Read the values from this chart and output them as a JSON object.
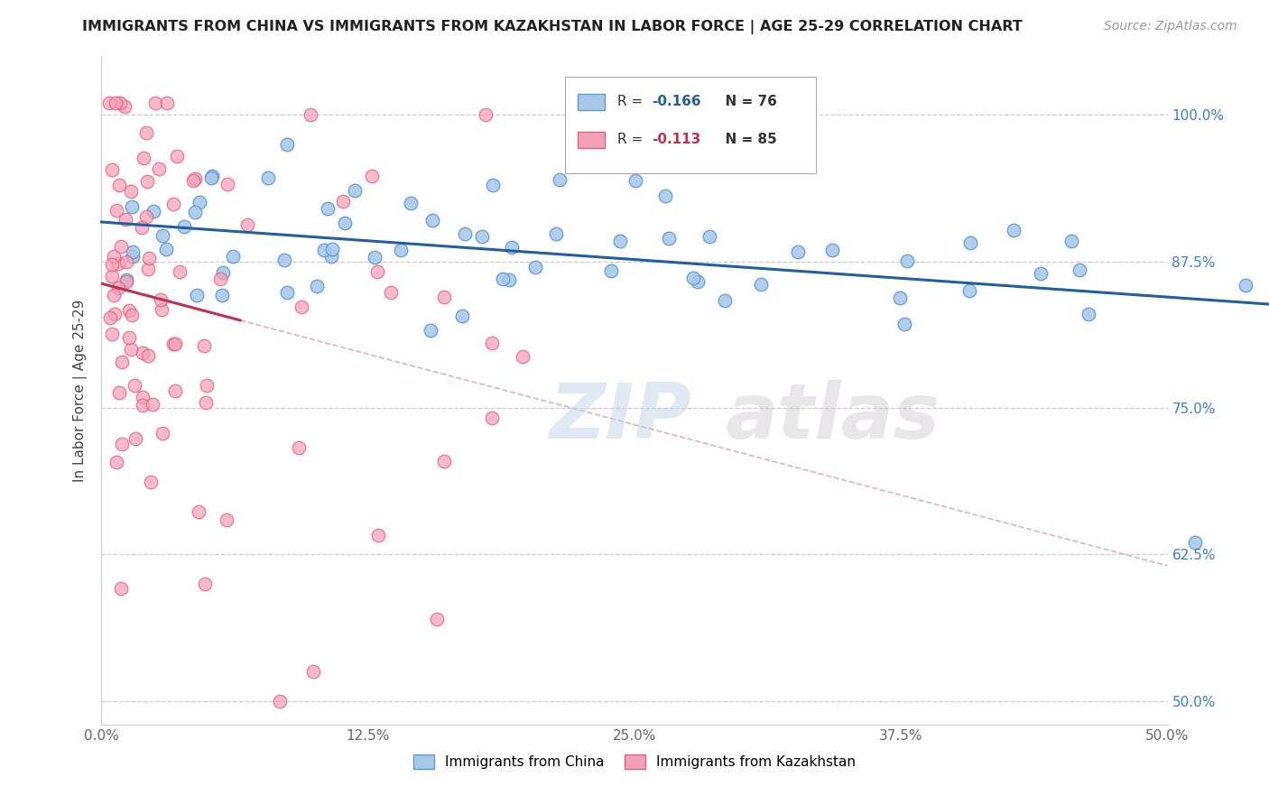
{
  "title": "IMMIGRANTS FROM CHINA VS IMMIGRANTS FROM KAZAKHSTAN IN LABOR FORCE | AGE 25-29 CORRELATION CHART",
  "source": "Source: ZipAtlas.com",
  "xlabel_ticks": [
    "0.0%",
    "12.5%",
    "25.0%",
    "37.5%",
    "50.0%"
  ],
  "xlabel_tick_vals": [
    0.0,
    0.125,
    0.25,
    0.375,
    0.5
  ],
  "ylabel": "In Labor Force | Age 25-29",
  "ylabel_right_ticks": [
    "100.0%",
    "87.5%",
    "75.0%",
    "62.5%",
    "50.0%"
  ],
  "ylabel_right_vals": [
    1.0,
    0.875,
    0.75,
    0.625,
    0.5
  ],
  "xmin": 0.0,
  "xmax": 0.5,
  "ymin": 0.48,
  "ymax": 1.05,
  "legend_blue_r": "R = ",
  "legend_blue_r_val": "-0.166",
  "legend_blue_n": "N = 76",
  "legend_pink_r": "R = ",
  "legend_pink_r_val": "-0.113",
  "legend_pink_n": "N = 85",
  "blue_color": "#a8c8e8",
  "blue_edge": "#5b9bd5",
  "pink_color": "#f4a0b8",
  "pink_edge": "#e06080",
  "trend_blue": "#2060a0",
  "trend_pink": "#c03050",
  "trend_pink_dashed_color": "#e0b0c0",
  "watermark_zip": "ZIP",
  "watermark_atlas": "atlas",
  "bottom_legend_blue": "Immigrants from China",
  "bottom_legend_pink": "Immigrants from Kazakhstan"
}
